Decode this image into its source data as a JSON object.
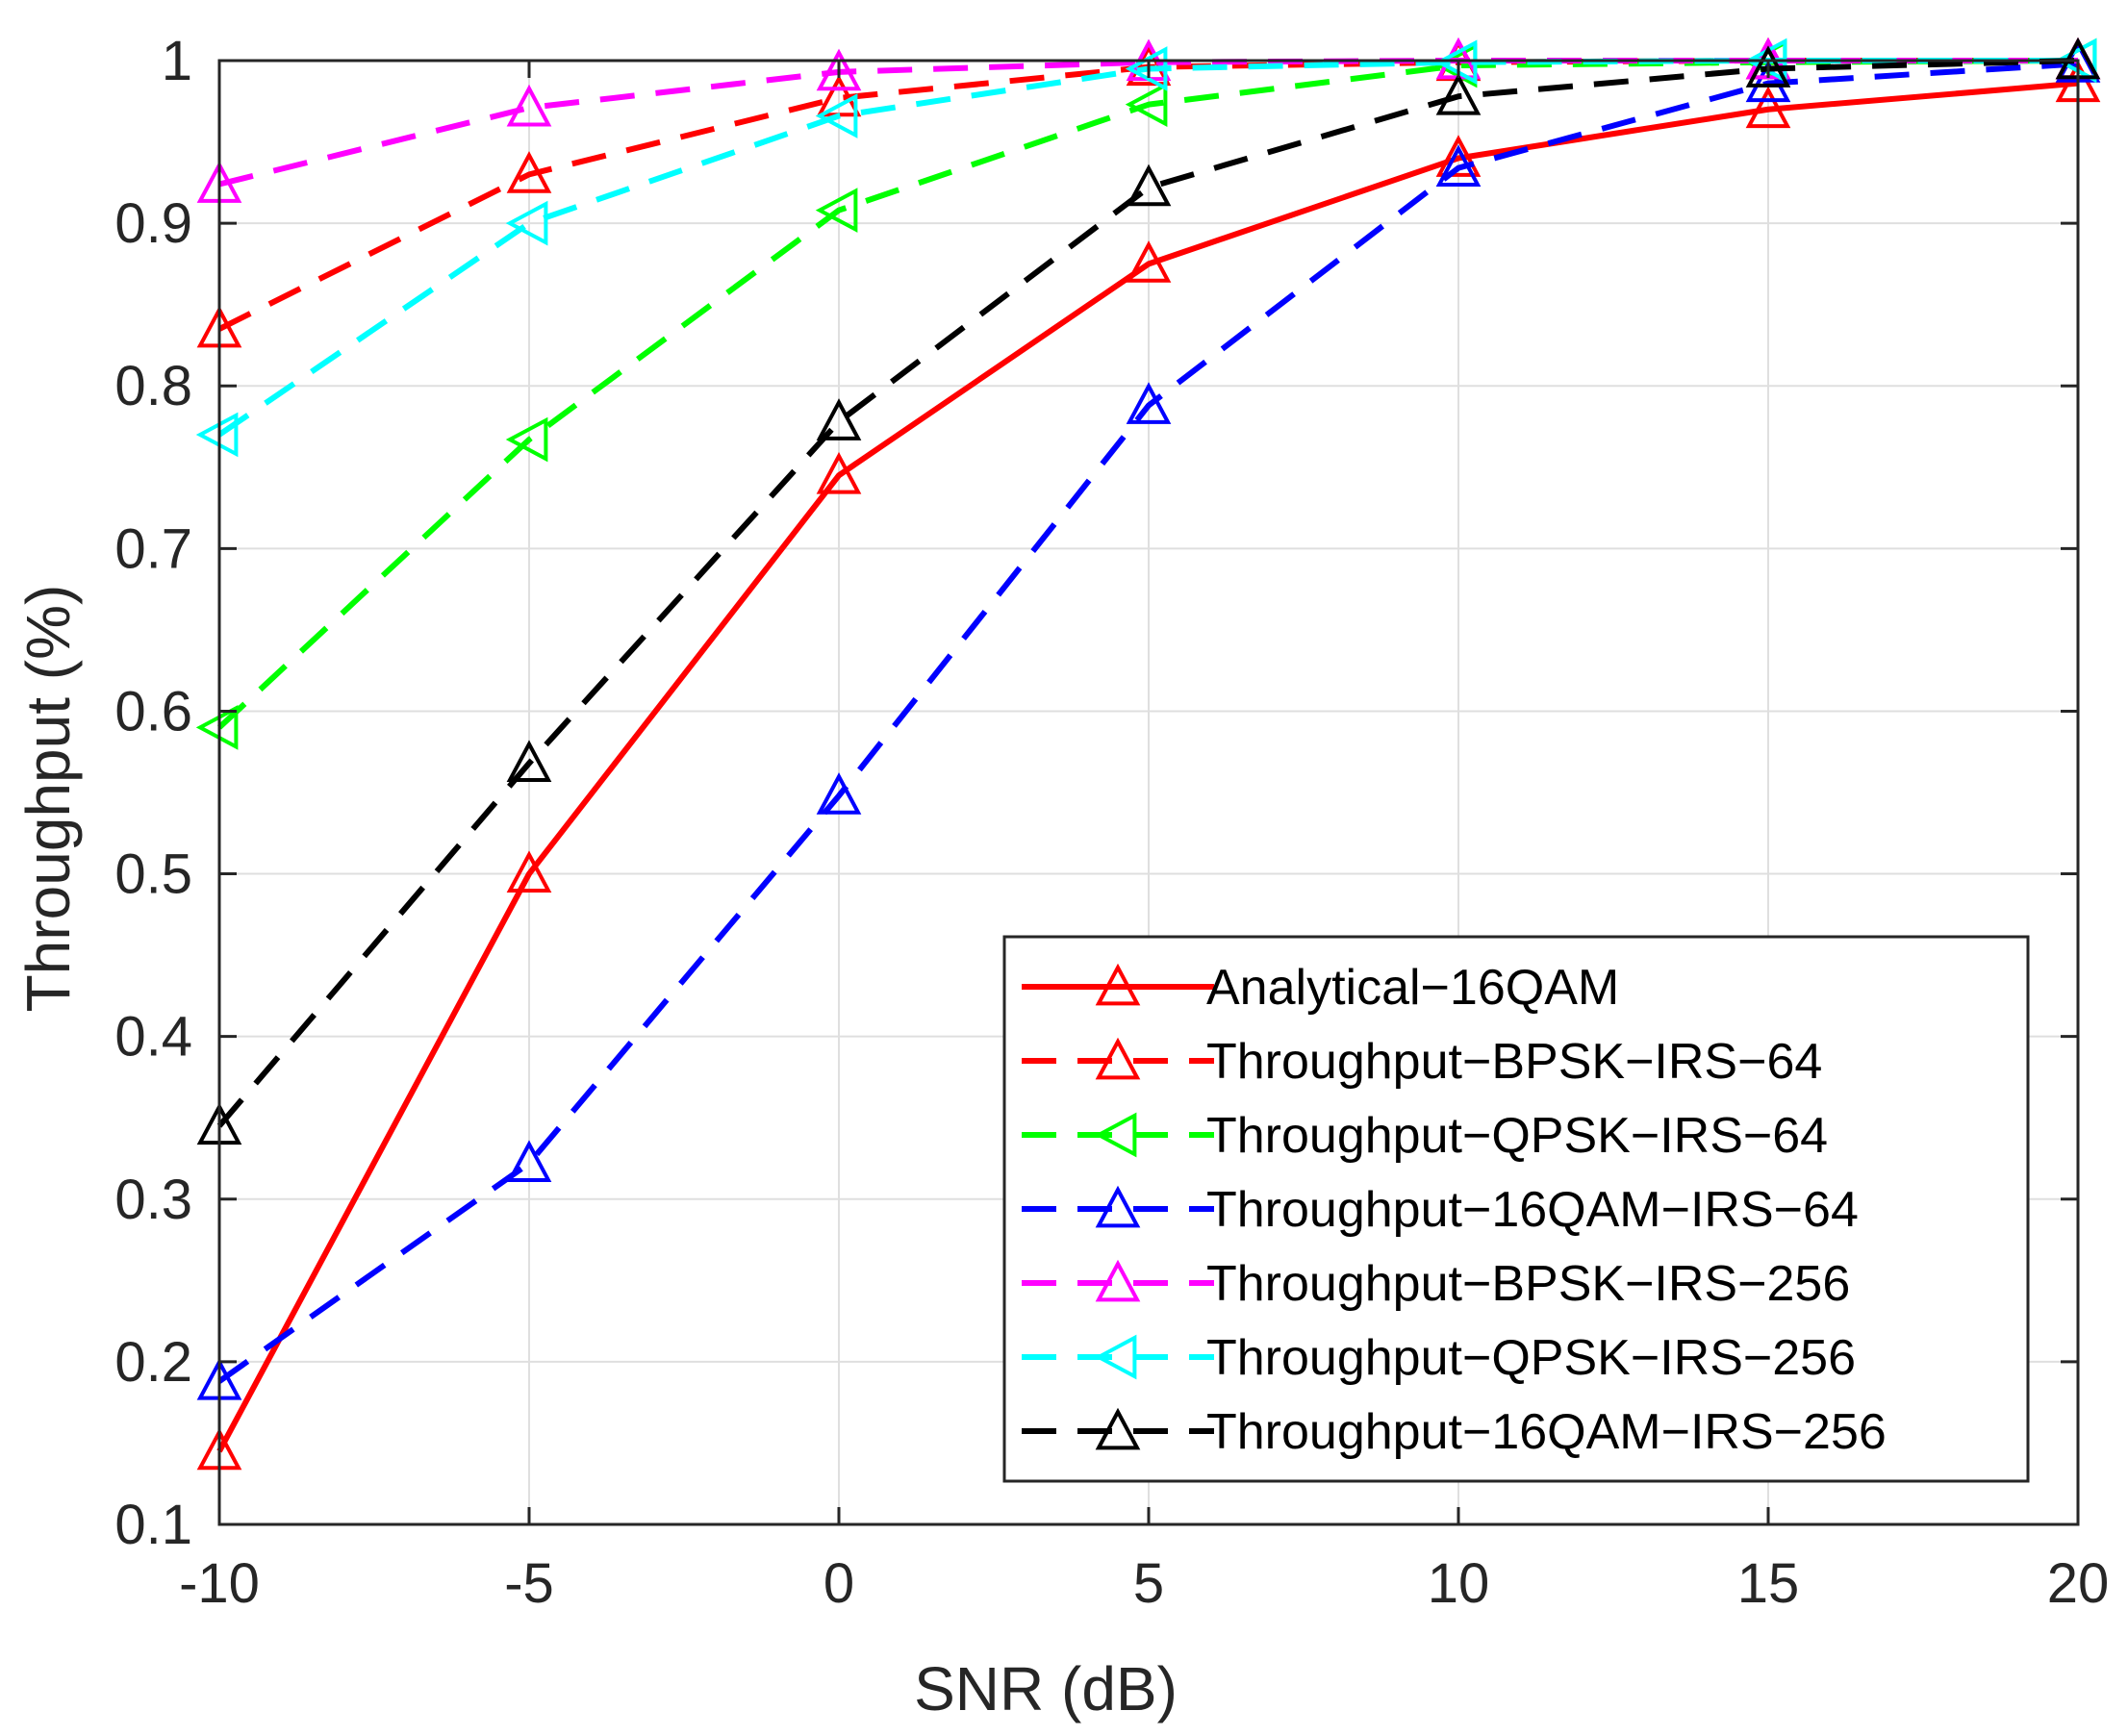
{
  "chart_data": {
    "type": "line",
    "title": "",
    "xlabel": "SNR (dB)",
    "ylabel": "Throughput (%)",
    "xlim": [
      -10,
      20
    ],
    "ylim": [
      0.1,
      1
    ],
    "grid": true,
    "legend_position": "bottom-right",
    "x": [
      -10,
      -5,
      0,
      5,
      10,
      15,
      20
    ],
    "x_tick_labels": [
      "-10",
      "-5",
      "0",
      "5",
      "10",
      "15",
      "20"
    ],
    "y_ticks": [
      0.1,
      0.2,
      0.3,
      0.4,
      0.5,
      0.6,
      0.7,
      0.8,
      0.9,
      1
    ],
    "y_tick_labels": [
      "0.1",
      "0.2",
      "0.3",
      "0.4",
      "0.5",
      "0.6",
      "0.7",
      "0.8",
      "0.9",
      "1"
    ],
    "series": [
      {
        "name": "Analytical−16QAM",
        "color": "#ff0000",
        "dash": "solid",
        "marker": "triangle-up",
        "values": [
          0.145,
          0.5,
          0.745,
          0.875,
          0.94,
          0.97,
          0.986
        ]
      },
      {
        "name": "Throughput−BPSK−IRS−64",
        "color": "#ff0000",
        "dash": "dashed",
        "marker": "triangle-up",
        "values": [
          0.835,
          0.93,
          0.977,
          0.996,
          0.999,
          1.0,
          1.0
        ]
      },
      {
        "name": "Throughput−QPSK−IRS−64",
        "color": "#00ff00",
        "dash": "dashed",
        "marker": "triangle-left",
        "values": [
          0.59,
          0.767,
          0.908,
          0.973,
          0.997,
          0.999,
          1.0
        ]
      },
      {
        "name": "Throughput−16QAM−IRS−64",
        "color": "#0000ff",
        "dash": "dashed",
        "marker": "triangle-up",
        "values": [
          0.188,
          0.322,
          0.548,
          0.788,
          0.934,
          0.986,
          0.998
        ]
      },
      {
        "name": "Throughput−BPSK−IRS−256",
        "color": "#ff00ff",
        "dash": "dashed",
        "marker": "triangle-up",
        "values": [
          0.924,
          0.971,
          0.993,
          0.999,
          1.0,
          1.0,
          1.0
        ]
      },
      {
        "name": "Throughput−QPSK−IRS−256",
        "color": "#00ffff",
        "dash": "dashed",
        "marker": "triangle-left",
        "values": [
          0.77,
          0.9,
          0.966,
          0.995,
          0.999,
          1.0,
          1.0
        ]
      },
      {
        "name": "Throughput−16QAM−IRS−256",
        "color": "#000000",
        "dash": "dashed",
        "marker": "triangle-up",
        "values": [
          0.345,
          0.568,
          0.778,
          0.922,
          0.978,
          0.995,
          1.0
        ]
      }
    ]
  }
}
